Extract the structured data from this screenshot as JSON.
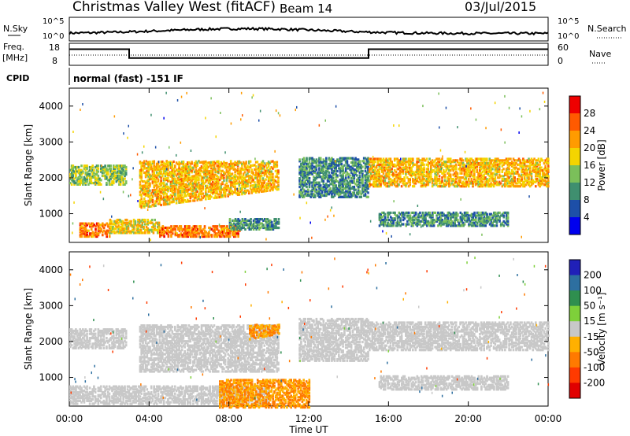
{
  "header": {
    "title": "Christmas Valley West (fitACF)",
    "beam": "Beam 14",
    "date": "03/Jul/2015"
  },
  "strip": {
    "nsky_label": "N.Sky",
    "nsky_ticks": [
      "10^5",
      "10^0"
    ],
    "nsearch_label": "N.Search",
    "nsearch_ticks": [
      "10^5",
      "10^0"
    ],
    "freq_label_1": "Freq.",
    "freq_label_2": "[MHz]",
    "freq_ticks": [
      "18",
      "8"
    ],
    "nave_label": "Nave",
    "nave_ticks": [
      "60",
      "0"
    ],
    "cpid_label": "CPID",
    "cpid_text": "normal (fast) -151 IF"
  },
  "panels": {
    "ylabel": "Slant Range [km]",
    "yticks": [
      "4000",
      "3000",
      "2000",
      "1000"
    ],
    "xticks": [
      "00:00",
      "04:00",
      "08:00",
      "12:00",
      "16:00",
      "20:00",
      "00:00"
    ],
    "xlabel": "Time UT"
  },
  "colorbars": {
    "power": {
      "label": "Power [dB]",
      "ticks": [
        "28",
        "24",
        "20",
        "16",
        "12",
        "8",
        "4"
      ],
      "colors": [
        "#ee0000",
        "#ff5a00",
        "#ff9b00",
        "#f4d400",
        "#7bbf5a",
        "#3f8f6f",
        "#1d4fa8",
        "#0000ee"
      ]
    },
    "velocity": {
      "label": "Velocity [m s⁻¹]",
      "ticks": [
        "200",
        "100",
        "50",
        "15",
        "-15",
        "-50",
        "-100",
        "-200"
      ],
      "colors": [
        "#2020b8",
        "#2d6fa0",
        "#2f8f4f",
        "#7ed03a",
        "#c8c8c8",
        "#ffb000",
        "#ff7a00",
        "#ff3a00",
        "#e00000"
      ]
    }
  },
  "chart_data": {
    "type": "heatmap",
    "title": "Christmas Valley West (fitACF)",
    "xlabel": "Time UT",
    "ylabel": "Slant Range [km]",
    "xlim": [
      0,
      24
    ],
    "ylim": [
      200,
      4500
    ],
    "xticks": [
      "00:00",
      "04:00",
      "08:00",
      "12:00",
      "16:00",
      "20:00",
      "00:00"
    ],
    "yticks": [
      1000,
      2000,
      3000,
      4000
    ],
    "freq_mhz": [
      {
        "t": 0,
        "f": 16
      },
      {
        "t": 3,
        "f": 16
      },
      {
        "t": 3,
        "f": 10
      },
      {
        "t": 15,
        "f": 10
      },
      {
        "t": 15,
        "f": 16
      },
      {
        "t": 24,
        "f": 16
      }
    ],
    "power_bands": [
      {
        "t0": 0.0,
        "t1": 2.8,
        "r0": 1850,
        "r1": 2400,
        "db": 16
      },
      {
        "t0": 0.5,
        "t1": 2.0,
        "r0": 400,
        "r1": 800,
        "db": 26
      },
      {
        "t0": 2.0,
        "t1": 4.5,
        "r0": 500,
        "r1": 900,
        "db": 20
      },
      {
        "t0": 4.5,
        "t1": 8.5,
        "r0": 400,
        "r1": 700,
        "db": 26
      },
      {
        "t0": 3.5,
        "t1": 10.5,
        "r0": 1200,
        "r1": 2500,
        "db": 22
      },
      {
        "t0": 8.0,
        "t1": 10.5,
        "r0": 600,
        "r1": 900,
        "db": 12
      },
      {
        "t0": 11.5,
        "t1": 15.0,
        "r0": 1500,
        "r1": 2600,
        "db": 12
      },
      {
        "t0": 15.0,
        "t1": 24.0,
        "r0": 1800,
        "r1": 2600,
        "db": 22
      },
      {
        "t0": 15.5,
        "t1": 22.0,
        "r0": 700,
        "r1": 1100,
        "db": 12
      }
    ],
    "velocity_bands": [
      {
        "t0": 0.0,
        "t1": 2.8,
        "r0": 1850,
        "r1": 2400,
        "v": 0
      },
      {
        "t0": 0.0,
        "t1": 10.0,
        "r0": 300,
        "r1": 800,
        "v": 0
      },
      {
        "t0": 7.5,
        "t1": 12.0,
        "r0": 200,
        "r1": 1000,
        "v": -50
      },
      {
        "t0": 3.5,
        "t1": 10.5,
        "r0": 1200,
        "r1": 2500,
        "v": 0
      },
      {
        "t0": 9.0,
        "t1": 10.5,
        "r0": 2100,
        "r1": 2500,
        "v": -50
      },
      {
        "t0": 11.5,
        "t1": 15.0,
        "r0": 1500,
        "r1": 2700,
        "v": 0
      },
      {
        "t0": 15.0,
        "t1": 24.0,
        "r0": 1800,
        "r1": 2600,
        "v": 0
      },
      {
        "t0": 15.5,
        "t1": 22.0,
        "r0": 700,
        "r1": 1100,
        "v": 0
      }
    ]
  }
}
